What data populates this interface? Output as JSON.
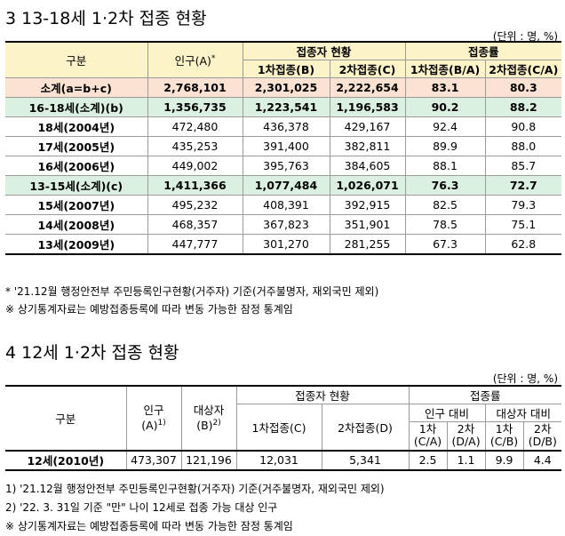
{
  "section3": {
    "title": "3  13-18세 1·2차 접종 현황",
    "unit": "(단위 : 명, %)",
    "headers": {
      "category": "구분",
      "population": "인구(A)",
      "population_mark": "*",
      "vaccinated_group": "접종자 현황",
      "rate_group": "접종률",
      "dose1": "1차접종(B)",
      "dose2": "2차접종(C)",
      "rate1": "1차접종(B/A)",
      "rate2": "2차접종(C/A)"
    },
    "rows": [
      {
        "label": "소계(a=b+c)",
        "pop": "2,768,101",
        "d1": "2,301,025",
        "d2": "2,222,654",
        "r1": "83.1",
        "r2": "80.3"
      },
      {
        "label": "16-18세(소계)(b)",
        "pop": "1,356,735",
        "d1": "1,223,541",
        "d2": "1,196,583",
        "r1": "90.2",
        "r2": "88.2"
      },
      {
        "label": "18세(2004년)",
        "pop": "472,480",
        "d1": "436,378",
        "d2": "429,167",
        "r1": "92.4",
        "r2": "90.8"
      },
      {
        "label": "17세(2005년)",
        "pop": "435,253",
        "d1": "391,400",
        "d2": "382,811",
        "r1": "89.9",
        "r2": "88.0"
      },
      {
        "label": "16세(2006년)",
        "pop": "449,002",
        "d1": "395,763",
        "d2": "384,605",
        "r1": "88.1",
        "r2": "85.7"
      },
      {
        "label": "13-15세(소계)(c)",
        "pop": "1,411,366",
        "d1": "1,077,484",
        "d2": "1,026,071",
        "r1": "76.3",
        "r2": "72.7"
      },
      {
        "label": "15세(2007년)",
        "pop": "495,232",
        "d1": "408,391",
        "d2": "392,915",
        "r1": "82.5",
        "r2": "79.3"
      },
      {
        "label": "14세(2008년)",
        "pop": "468,357",
        "d1": "367,823",
        "d2": "351,901",
        "r1": "78.5",
        "r2": "75.1"
      },
      {
        "label": "13세(2009년)",
        "pop": "447,777",
        "d1": "301,270",
        "d2": "281,255",
        "r1": "67.3",
        "r2": "62.8"
      }
    ],
    "notes": [
      "* '21.12월 행정안전부 주민등록인구현황(거주자) 기준(거주불명자, 재외국민 제외)",
      "※ 상기통계자료는 예방접종등록에 따라 변동 가능한 잠정 통계임"
    ]
  },
  "section4": {
    "title": "4  12세 1·2차 접종 현황",
    "unit": "(단위 : 명, %)",
    "headers": {
      "category": "구분",
      "population": "인구",
      "population_sub": "(A)",
      "population_mark": "1)",
      "target": "대상자",
      "target_sub": "(B)",
      "target_mark": "2)",
      "vaccinated_group": "접종자 현황",
      "rate_group": "접종률",
      "dose1": "1차접종(C)",
      "dose2": "2차접종(D)",
      "vs_population": "인구 대비",
      "vs_target": "대상자 대비",
      "p1_top": "1차",
      "p1_bot": "(C/A)",
      "p2_top": "2차",
      "p2_bot": "(D/A)",
      "t1_top": "1차",
      "t1_bot": "(C/B)",
      "t2_top": "2차",
      "t2_bot": "(D/B)"
    },
    "row": {
      "label": "12세(2010년)",
      "pop": "473,307",
      "target": "121,196",
      "d1": "12,031",
      "d2": "5,341",
      "p1": "2.5",
      "p2": "1.1",
      "t1": "9.9",
      "t2": "4.4"
    },
    "notes": [
      "1) '21.12월 행정안전부 주민등록인구현황(거주자) 기준(거주불명자, 재외국민 제외)",
      "2) '22. 3. 31일 기준 \"만\" 나이 12세로 접종 가능 대상 인구",
      "※ 상기통계자료는 예방접종등록에 따라 변동 가능한 잠정 통계임"
    ]
  }
}
